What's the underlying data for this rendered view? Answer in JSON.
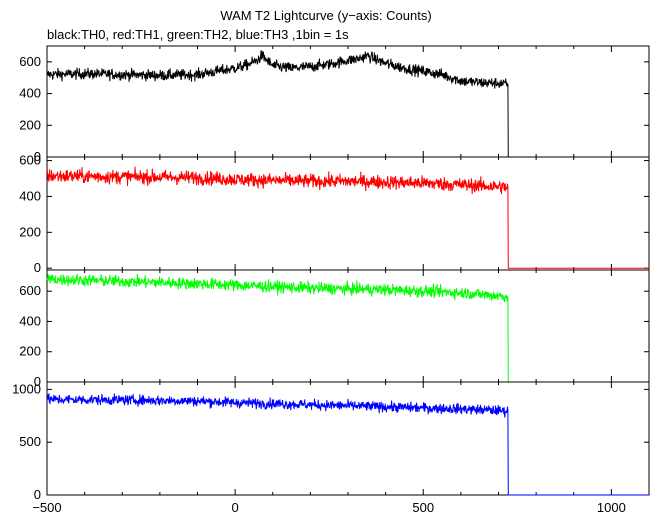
{
  "chart_data": {
    "type": "line",
    "title": "WAM T2 Lightcurve (y−axis: Counts)",
    "subtitle": "black:TH0, red:TH1, green:TH2, blue:TH3 ,1bin = 1s",
    "xlim": [
      -500,
      1100
    ],
    "x_ticks": [
      -500,
      0,
      500,
      1000
    ],
    "x_tick_labels": [
      "−500",
      "0",
      "500",
      "1000"
    ],
    "cutoff_x": 725,
    "panels": [
      {
        "series": "TH0",
        "color": "#000000",
        "ylim": [
          0,
          700
        ],
        "y_ticks": [
          0,
          200,
          400,
          600
        ],
        "x": [
          -500,
          -400,
          -300,
          -200,
          -100,
          0,
          30,
          60,
          70,
          80,
          100,
          150,
          200,
          250,
          300,
          330,
          350,
          370,
          400,
          450,
          500,
          550,
          600,
          650,
          700,
          725,
          725.5,
          1100
        ],
        "y": [
          520,
          525,
          520,
          515,
          520,
          560,
          580,
          610,
          640,
          620,
          575,
          560,
          570,
          585,
          610,
          620,
          640,
          620,
          590,
          560,
          540,
          520,
          480,
          470,
          465,
          460,
          0,
          0
        ],
        "noise": 25
      },
      {
        "series": "TH1",
        "color": "#ff0000",
        "ylim": [
          -10,
          620
        ],
        "y_ticks": [
          0,
          200,
          400,
          600
        ],
        "x": [
          -500,
          -300,
          -100,
          0,
          100,
          200,
          300,
          400,
          500,
          600,
          700,
          725,
          725.5,
          1100
        ],
        "y": [
          515,
          510,
          505,
          495,
          490,
          485,
          485,
          480,
          475,
          465,
          455,
          450,
          0,
          0
        ],
        "noise": 28
      },
      {
        "series": "TH2",
        "color": "#00ff00",
        "ylim": [
          0,
          740
        ],
        "y_ticks": [
          0,
          200,
          400,
          600
        ],
        "x": [
          -500,
          -300,
          -100,
          0,
          100,
          200,
          300,
          400,
          500,
          600,
          700,
          725,
          725.5,
          1100
        ],
        "y": [
          680,
          665,
          650,
          640,
          630,
          620,
          615,
          610,
          600,
          590,
          570,
          565,
          0,
          0
        ],
        "noise": 28
      },
      {
        "series": "TH3",
        "color": "#0000ff",
        "ylim": [
          0,
          1070
        ],
        "y_ticks": [
          0,
          500,
          1000
        ],
        "x": [
          -500,
          -300,
          -100,
          0,
          100,
          200,
          300,
          400,
          500,
          600,
          700,
          725,
          725.5,
          1100
        ],
        "y": [
          905,
          900,
          890,
          875,
          865,
          855,
          845,
          835,
          825,
          815,
          800,
          795,
          0,
          0
        ],
        "noise": 35
      }
    ]
  }
}
